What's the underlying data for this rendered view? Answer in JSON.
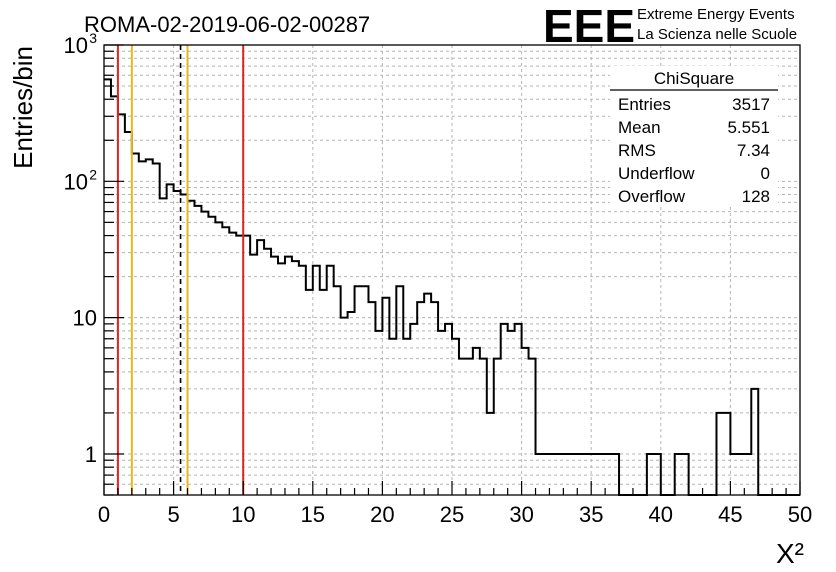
{
  "logo": {
    "mark": "EEE",
    "line1": "Extreme Energy Events",
    "line2": "La Scienza nelle Scuole",
    "color": "#1f1fe6"
  },
  "chart_data": {
    "type": "histogram",
    "title": "ROMA-02-2019-06-02-00287",
    "xlabel": "X²",
    "ylabel": "Entries/bin",
    "xlim": [
      0,
      50
    ],
    "ylim": [
      0.5,
      1000
    ],
    "yscale": "log",
    "grid": true,
    "bin_width": 0.5,
    "x_ticks": [
      "0",
      "5",
      "10",
      "15",
      "20",
      "25",
      "30",
      "35",
      "40",
      "45",
      "50"
    ],
    "y_ticks": [
      {
        "value": 1,
        "label": "1"
      },
      {
        "value": 10,
        "label": "10"
      },
      {
        "value": 100,
        "label": "10",
        "sup": "2"
      },
      {
        "value": 1000,
        "label": "10",
        "sup": "3"
      }
    ],
    "bin_counts": [
      560,
      420,
      310,
      230,
      160,
      140,
      145,
      135,
      75,
      95,
      85,
      80,
      72,
      66,
      60,
      55,
      50,
      46,
      42,
      40,
      40,
      29,
      37,
      32,
      28,
      25,
      28,
      26,
      24,
      16,
      24,
      16,
      24,
      17,
      10,
      11,
      17,
      17,
      13,
      8,
      14,
      7,
      17,
      7,
      9,
      13,
      15,
      13,
      8,
      9,
      7,
      5,
      5,
      6,
      5,
      2,
      5,
      9,
      8,
      9,
      6,
      5,
      1,
      1,
      1,
      1,
      1,
      1,
      1,
      1,
      1,
      1,
      1,
      1,
      0,
      0,
      0,
      0,
      1,
      1,
      0,
      0,
      1,
      1,
      0,
      0,
      0,
      0,
      2,
      2,
      1,
      1,
      1,
      3,
      0,
      0,
      0,
      0,
      0,
      0
    ],
    "bin_counts_note": "",
    "vertical_lines": [
      {
        "x": 1.0,
        "color": "#e32222",
        "style": "solid"
      },
      {
        "x": 2.0,
        "color": "#e8b820",
        "style": "solid"
      },
      {
        "x": 5.5,
        "color": "#000000",
        "style": "dashed"
      },
      {
        "x": 6.0,
        "color": "#e8b820",
        "style": "solid"
      },
      {
        "x": 10.0,
        "color": "#e32222",
        "style": "solid"
      }
    ],
    "stats_box": {
      "title": "ChiSquare",
      "rows": [
        {
          "label": "Entries",
          "value": "3517"
        },
        {
          "label": "Mean",
          "value": "5.551"
        },
        {
          "label": "RMS",
          "value": "7.34"
        },
        {
          "label": "Underflow",
          "value": "0"
        },
        {
          "label": "Overflow",
          "value": "128"
        }
      ]
    }
  }
}
